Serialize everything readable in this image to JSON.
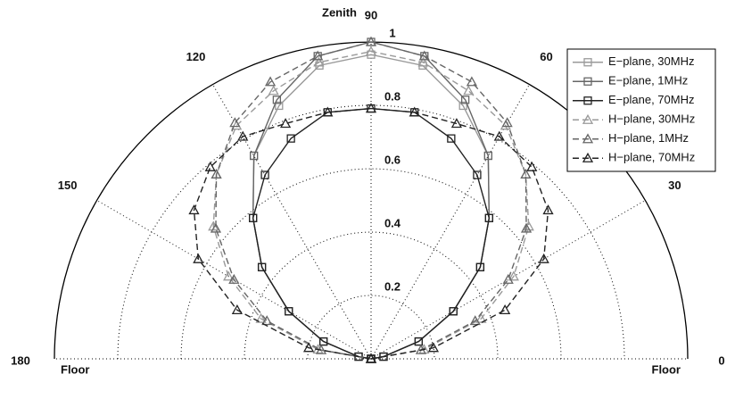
{
  "chart_data": {
    "type": "polar",
    "theta_labels": {
      "top": "Zenith",
      "left": "Floor",
      "right": "Floor"
    },
    "x": [
      0,
      10,
      20,
      30,
      40,
      50,
      60,
      70,
      80,
      90,
      100,
      110,
      120,
      130,
      140,
      150,
      160,
      170,
      180
    ],
    "xlim": [
      0,
      180
    ],
    "xticks": [
      0,
      30,
      60,
      90,
      120,
      150,
      180
    ],
    "ylim": [
      0,
      1
    ],
    "yticks": [
      0.2,
      0.4,
      0.6,
      0.8,
      1
    ],
    "grid": true,
    "legend": "upper right",
    "series": [
      {
        "name": "E−plane, 30MHz",
        "color": "#9a9a9a",
        "marker": "square",
        "linestyle": "solid",
        "values": [
          0,
          0.04,
          0.16,
          0.3,
          0.45,
          0.58,
          0.74,
          0.85,
          0.94,
          0.96,
          0.94,
          0.85,
          0.74,
          0.58,
          0.45,
          0.3,
          0.16,
          0.04,
          0
        ]
      },
      {
        "name": "E−plane, 1MHz",
        "color": "#666666",
        "marker": "square",
        "linestyle": "solid",
        "values": [
          0,
          0.04,
          0.16,
          0.3,
          0.45,
          0.58,
          0.74,
          0.87,
          0.97,
          1.0,
          0.97,
          0.87,
          0.74,
          0.58,
          0.45,
          0.3,
          0.16,
          0.04,
          0
        ]
      },
      {
        "name": "E−plane, 70MHz",
        "color": "#222222",
        "marker": "square",
        "linestyle": "solid",
        "values": [
          0,
          0.04,
          0.16,
          0.3,
          0.45,
          0.58,
          0.67,
          0.74,
          0.79,
          0.79,
          0.79,
          0.74,
          0.67,
          0.58,
          0.45,
          0.3,
          0.16,
          0.04,
          0
        ]
      },
      {
        "name": "H−plane, 30MHz",
        "color": "#9a9a9a",
        "marker": "triangle",
        "linestyle": "dashed",
        "values": [
          0,
          0.17,
          0.37,
          0.52,
          0.65,
          0.76,
          0.85,
          0.9,
          0.95,
          0.97,
          0.95,
          0.9,
          0.85,
          0.76,
          0.65,
          0.52,
          0.37,
          0.17,
          0
        ]
      },
      {
        "name": "H−plane, 1MHz",
        "color": "#666666",
        "marker": "triangle",
        "linestyle": "dashed",
        "values": [
          0,
          0.16,
          0.35,
          0.5,
          0.64,
          0.76,
          0.86,
          0.93,
          0.97,
          1.0,
          0.97,
          0.93,
          0.86,
          0.76,
          0.64,
          0.5,
          0.35,
          0.16,
          0
        ]
      },
      {
        "name": "H−plane, 70MHz",
        "color": "#222222",
        "marker": "triangle",
        "linestyle": "dashed",
        "values": [
          0,
          0.2,
          0.45,
          0.63,
          0.73,
          0.79,
          0.81,
          0.79,
          0.79,
          0.79,
          0.79,
          0.79,
          0.81,
          0.79,
          0.73,
          0.63,
          0.45,
          0.2,
          0
        ]
      }
    ]
  }
}
